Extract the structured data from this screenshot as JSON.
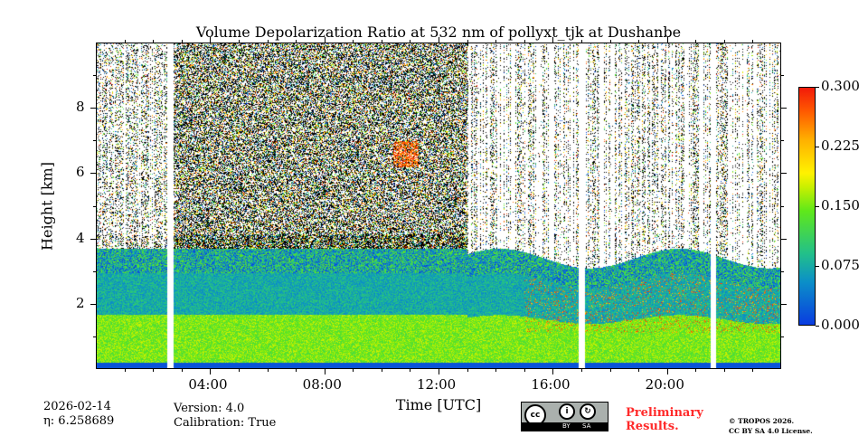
{
  "chart_data": {
    "type": "heatmap",
    "title": "Volume Depolarization Ratio at 532 nm of pollyxt_tjk at Dushanbe",
    "xlabel": "Time [UTC]",
    "ylabel": "Height [km]",
    "xlim": [
      0,
      24
    ],
    "ylim": [
      0,
      10
    ],
    "x_ticks": [
      {
        "v": 4,
        "label": "04:00"
      },
      {
        "v": 8,
        "label": "08:00"
      },
      {
        "v": 12,
        "label": "12:00"
      },
      {
        "v": 16,
        "label": "16:00"
      },
      {
        "v": 20,
        "label": "20:00"
      }
    ],
    "y_ticks": [
      {
        "v": 2,
        "label": "2"
      },
      {
        "v": 4,
        "label": "4"
      },
      {
        "v": 6,
        "label": "6"
      },
      {
        "v": 8,
        "label": "8"
      }
    ],
    "colorbar": {
      "range": [
        0,
        0.3
      ],
      "ticks": [
        "0.000",
        "0.075",
        "0.150",
        "0.225",
        "0.300"
      ]
    },
    "data_gaps_hours": [
      2.6,
      17.0,
      21.6
    ],
    "boundary_layer_top_km": {
      "start": 3.6,
      "end": 3.8
    },
    "features": [
      {
        "desc": "high depolarization patch",
        "time_h": [
          10.5,
          11.2
        ],
        "height_km": [
          6.2,
          7.0
        ]
      }
    ]
  },
  "footer": {
    "date": "2026-02-14",
    "eta": "η: 6.258689",
    "version": "Version: 4.0",
    "calibration": "Calibration: True",
    "prelim1": "Preliminary",
    "prelim2": "Results.",
    "copyright": "© TROPOS 2026.",
    "license": "CC BY SA 4.0 License.",
    "cc": "cc",
    "by": "BY",
    "sa": "SA"
  }
}
